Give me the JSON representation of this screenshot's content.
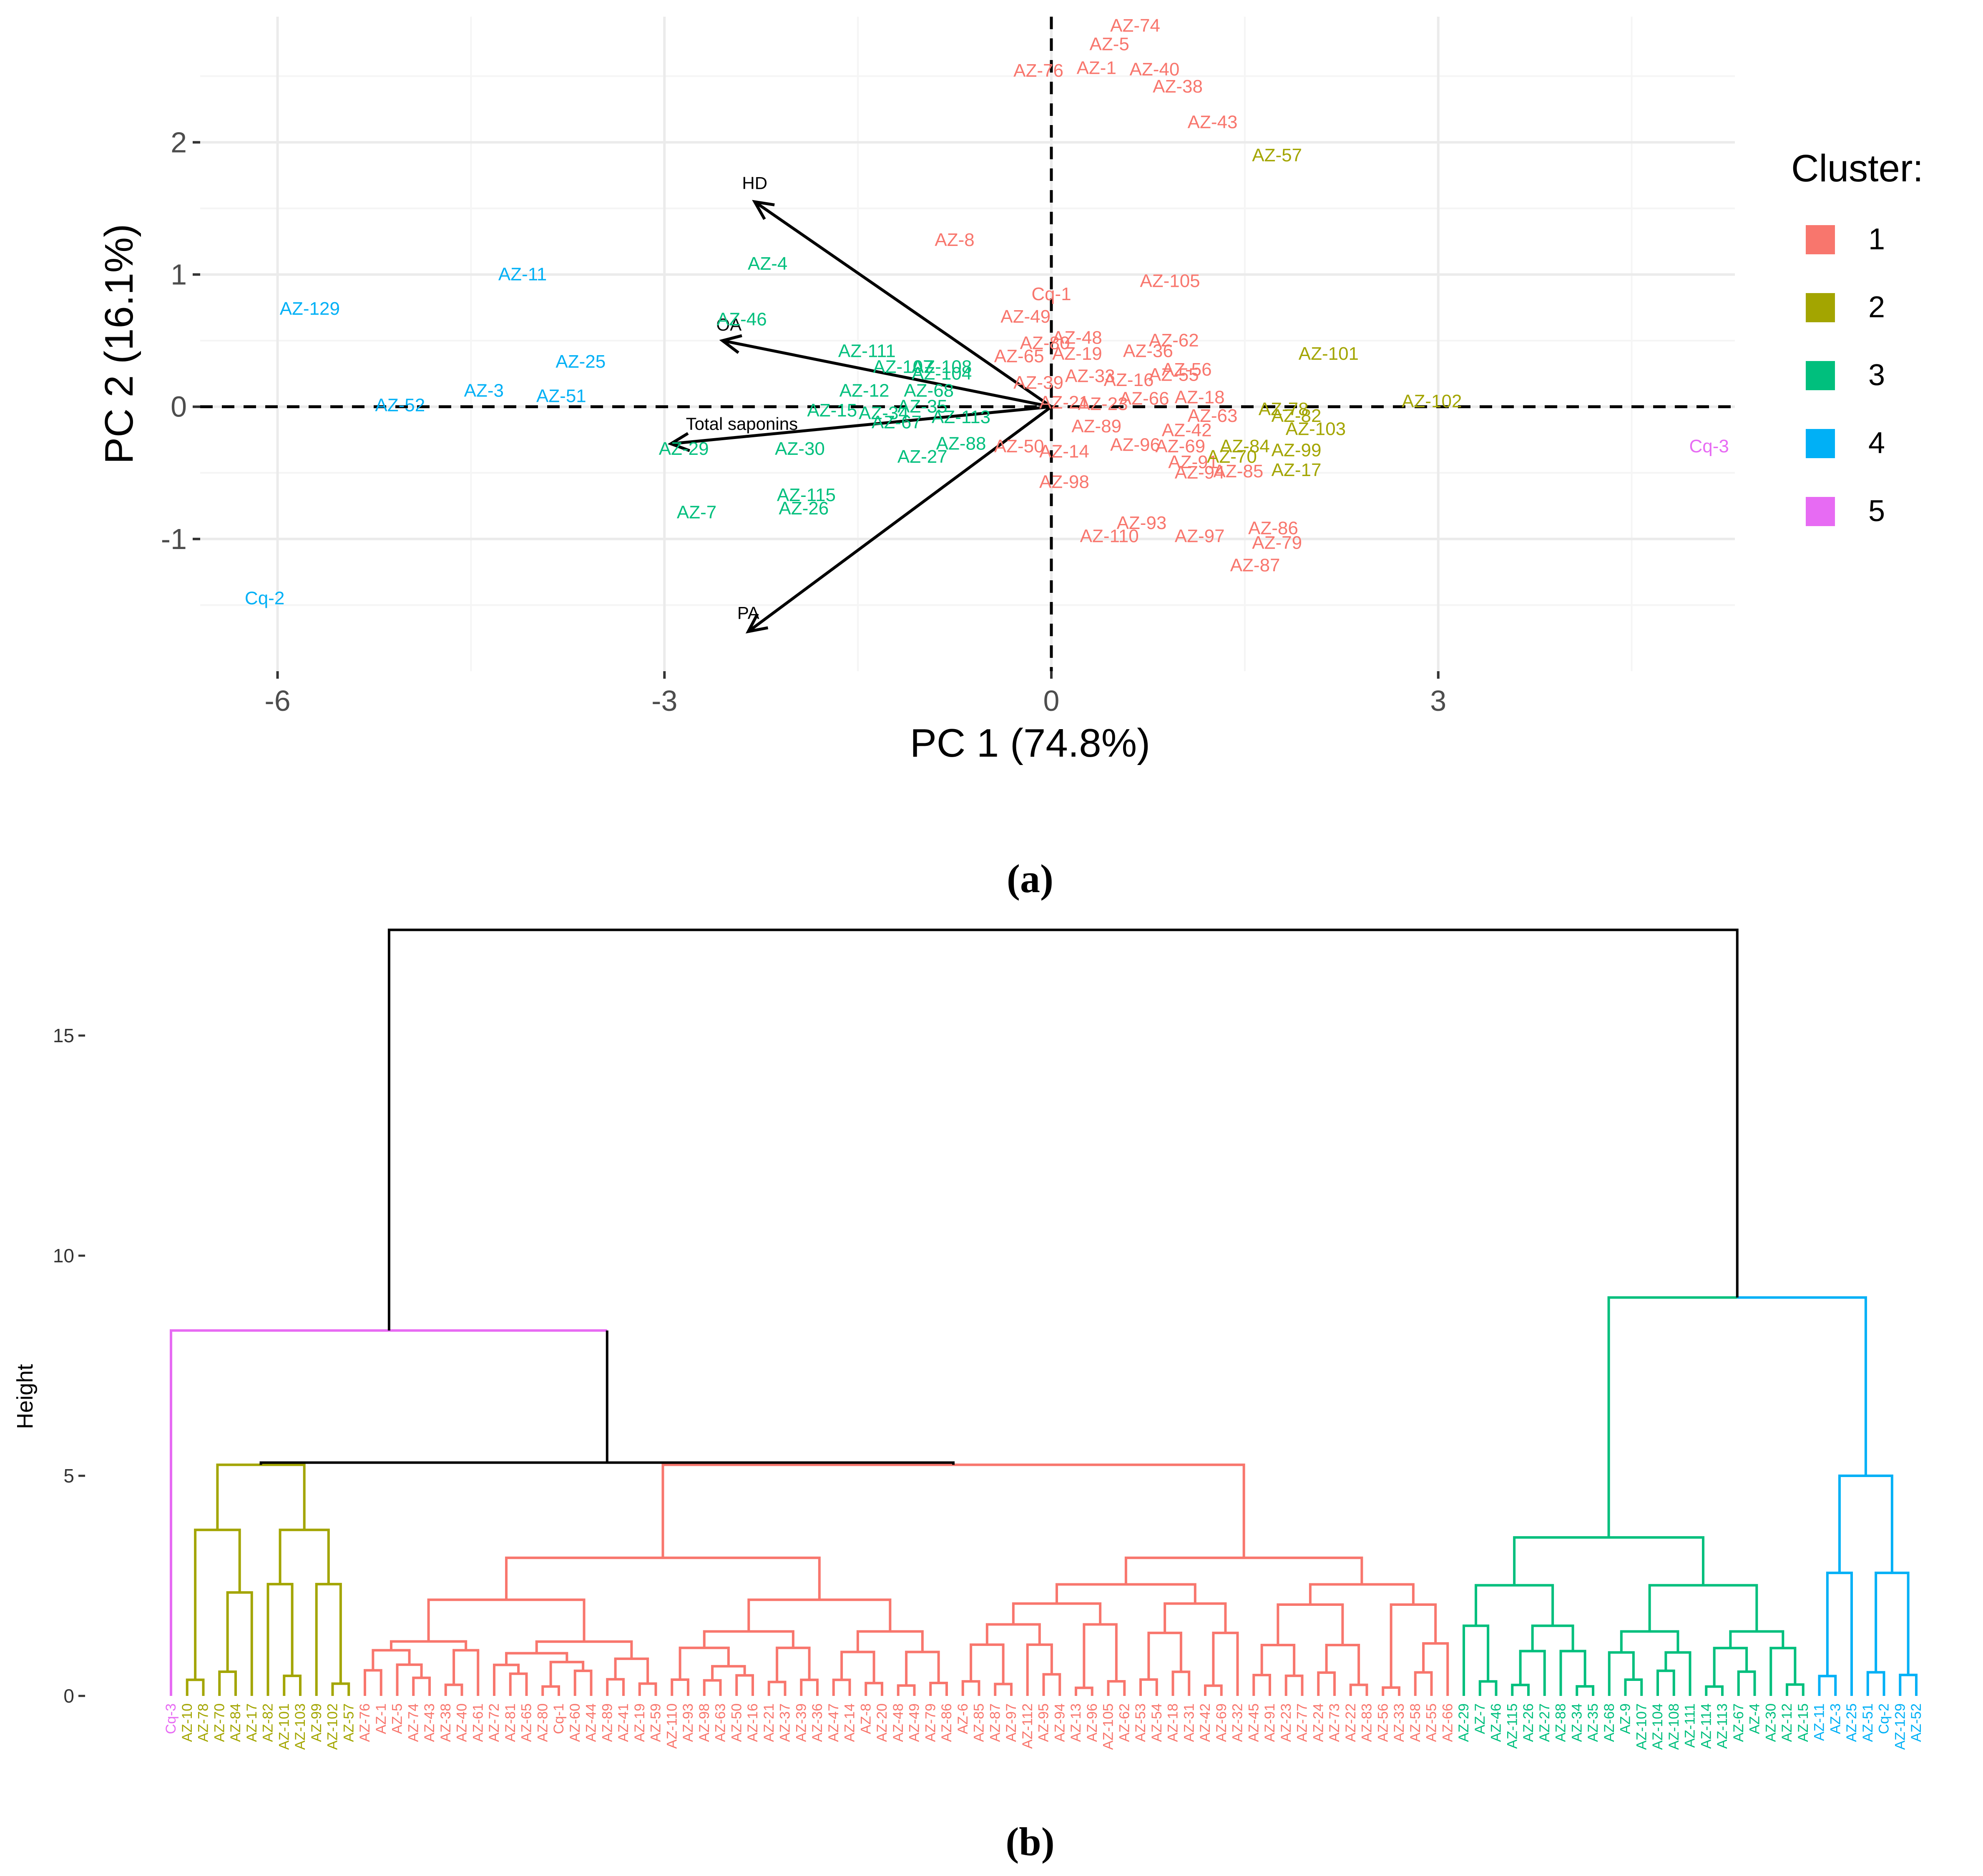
{
  "figure": {
    "panel_a_caption": "(a)",
    "panel_b_caption": "(b)"
  },
  "colors": {
    "cluster1": "#F8766D",
    "cluster2": "#A3A500",
    "cluster3": "#00BF7D",
    "cluster4": "#00B0F6",
    "cluster5": "#E76BF3",
    "grid_major": "#EBEBEB",
    "grid_minor": "#F5F5F5",
    "axis_text": "#4D4D4D"
  },
  "chart_data": [
    {
      "id": "pca_biplot",
      "type": "scatter",
      "xlabel": "PC 1 (74.8%)",
      "ylabel": "PC 2 (16.1%)",
      "xlim": [
        -6.6,
        5.3
      ],
      "ylim": [
        -2.0,
        2.95
      ],
      "x_ticks": [
        -6,
        -3,
        0,
        3
      ],
      "y_ticks": [
        2,
        1,
        0,
        -1
      ],
      "x_tick_labels": [
        "-6",
        "-3",
        "0",
        "3"
      ],
      "y_tick_labels": [
        "2",
        "1",
        "0",
        "-1"
      ],
      "legend": {
        "title": "Cluster:",
        "position": "right",
        "entries": [
          {
            "label": "1",
            "cluster": 1
          },
          {
            "label": "2",
            "cluster": 2
          },
          {
            "label": "3",
            "cluster": 3
          },
          {
            "label": "4",
            "cluster": 4
          },
          {
            "label": "5",
            "cluster": 5
          }
        ]
      },
      "loadings": [
        {
          "label": "HD",
          "x": -2.3,
          "y": 1.55,
          "lx": -2.3,
          "ly": 1.69
        },
        {
          "label": "OA",
          "x": -2.55,
          "y": 0.5,
          "lx": -2.5,
          "ly": 0.62
        },
        {
          "label": "Total saponins",
          "x": -2.95,
          "y": -0.28,
          "lx": -2.4,
          "ly": -0.13
        },
        {
          "label": "PA",
          "x": -2.35,
          "y": -1.7,
          "lx": -2.35,
          "ly": -1.56
        }
      ],
      "points": [
        {
          "label": "AZ-74",
          "x": 0.65,
          "y": 2.88,
          "cluster": 1
        },
        {
          "label": "AZ-5",
          "x": 0.45,
          "y": 2.74,
          "cluster": 1
        },
        {
          "label": "AZ-76",
          "x": -0.1,
          "y": 2.54,
          "cluster": 1
        },
        {
          "label": "AZ-1",
          "x": 0.35,
          "y": 2.56,
          "cluster": 1
        },
        {
          "label": "AZ-40",
          "x": 0.8,
          "y": 2.55,
          "cluster": 1
        },
        {
          "label": "AZ-38",
          "x": 0.98,
          "y": 2.42,
          "cluster": 1
        },
        {
          "label": "AZ-43",
          "x": 1.25,
          "y": 2.15,
          "cluster": 1
        },
        {
          "label": "AZ-8",
          "x": -0.75,
          "y": 1.26,
          "cluster": 1
        },
        {
          "label": "AZ-105",
          "x": 0.92,
          "y": 0.95,
          "cluster": 1
        },
        {
          "label": "Cq-1",
          "x": 0.0,
          "y": 0.85,
          "cluster": 1
        },
        {
          "label": "AZ-49",
          "x": -0.2,
          "y": 0.68,
          "cluster": 1
        },
        {
          "label": "AZ-48",
          "x": 0.2,
          "y": 0.52,
          "cluster": 1
        },
        {
          "label": "AZ-62",
          "x": 0.95,
          "y": 0.5,
          "cluster": 1
        },
        {
          "label": "AZ-80",
          "x": -0.05,
          "y": 0.48,
          "cluster": 1
        },
        {
          "label": "AZ-19",
          "x": 0.2,
          "y": 0.4,
          "cluster": 1
        },
        {
          "label": "AZ-36",
          "x": 0.75,
          "y": 0.42,
          "cluster": 1
        },
        {
          "label": "AZ-65",
          "x": -0.25,
          "y": 0.38,
          "cluster": 1
        },
        {
          "label": "AZ-56",
          "x": 1.05,
          "y": 0.28,
          "cluster": 1
        },
        {
          "label": "AZ-55",
          "x": 0.95,
          "y": 0.24,
          "cluster": 1
        },
        {
          "label": "AZ-16",
          "x": 0.6,
          "y": 0.2,
          "cluster": 1
        },
        {
          "label": "AZ-33",
          "x": 0.3,
          "y": 0.23,
          "cluster": 1
        },
        {
          "label": "AZ-39",
          "x": -0.1,
          "y": 0.18,
          "cluster": 1
        },
        {
          "label": "AZ-18",
          "x": 1.15,
          "y": 0.07,
          "cluster": 1
        },
        {
          "label": "AZ-66",
          "x": 0.72,
          "y": 0.06,
          "cluster": 1
        },
        {
          "label": "AZ-21",
          "x": 0.1,
          "y": 0.03,
          "cluster": 1
        },
        {
          "label": "AZ-23",
          "x": 0.4,
          "y": 0.02,
          "cluster": 1
        },
        {
          "label": "AZ-63",
          "x": 1.25,
          "y": -0.07,
          "cluster": 1
        },
        {
          "label": "AZ-89",
          "x": 0.35,
          "y": -0.15,
          "cluster": 1
        },
        {
          "label": "AZ-42",
          "x": 1.05,
          "y": -0.18,
          "cluster": 1
        },
        {
          "label": "AZ-50",
          "x": -0.25,
          "y": -0.3,
          "cluster": 1
        },
        {
          "label": "AZ-14",
          "x": 0.1,
          "y": -0.34,
          "cluster": 1
        },
        {
          "label": "AZ-96",
          "x": 0.65,
          "y": -0.29,
          "cluster": 1
        },
        {
          "label": "AZ-69",
          "x": 1.0,
          "y": -0.3,
          "cluster": 1
        },
        {
          "label": "AZ-91",
          "x": 1.1,
          "y": -0.42,
          "cluster": 1
        },
        {
          "label": "AZ-94",
          "x": 1.15,
          "y": -0.5,
          "cluster": 1
        },
        {
          "label": "AZ-85",
          "x": 1.45,
          "y": -0.49,
          "cluster": 1
        },
        {
          "label": "AZ-98",
          "x": 0.1,
          "y": -0.57,
          "cluster": 1
        },
        {
          "label": "AZ-93",
          "x": 0.7,
          "y": -0.88,
          "cluster": 1
        },
        {
          "label": "AZ-110",
          "x": 0.45,
          "y": -0.98,
          "cluster": 1
        },
        {
          "label": "AZ-97",
          "x": 1.15,
          "y": -0.98,
          "cluster": 1
        },
        {
          "label": "AZ-86",
          "x": 1.72,
          "y": -0.92,
          "cluster": 1
        },
        {
          "label": "AZ-79",
          "x": 1.75,
          "y": -1.03,
          "cluster": 1
        },
        {
          "label": "AZ-87",
          "x": 1.58,
          "y": -1.2,
          "cluster": 1
        },
        {
          "label": "AZ-57",
          "x": 1.75,
          "y": 1.9,
          "cluster": 2
        },
        {
          "label": "AZ-101",
          "x": 2.15,
          "y": 0.4,
          "cluster": 2
        },
        {
          "label": "AZ-102",
          "x": 2.95,
          "y": 0.04,
          "cluster": 2
        },
        {
          "label": "AZ-78",
          "x": 1.8,
          "y": -0.02,
          "cluster": 2
        },
        {
          "label": "AZ-82",
          "x": 1.9,
          "y": -0.07,
          "cluster": 2
        },
        {
          "label": "AZ-103",
          "x": 2.05,
          "y": -0.17,
          "cluster": 2
        },
        {
          "label": "AZ-84",
          "x": 1.5,
          "y": -0.3,
          "cluster": 2
        },
        {
          "label": "AZ-99",
          "x": 1.9,
          "y": -0.33,
          "cluster": 2
        },
        {
          "label": "AZ-70",
          "x": 1.4,
          "y": -0.38,
          "cluster": 2
        },
        {
          "label": "AZ-17",
          "x": 1.9,
          "y": -0.48,
          "cluster": 2
        },
        {
          "label": "AZ-4",
          "x": -2.2,
          "y": 1.08,
          "cluster": 3
        },
        {
          "label": "AZ-46",
          "x": -2.4,
          "y": 0.66,
          "cluster": 3
        },
        {
          "label": "AZ-111",
          "x": -1.43,
          "y": 0.42,
          "cluster": 3
        },
        {
          "label": "AZ-108",
          "x": -0.85,
          "y": 0.3,
          "cluster": 3
        },
        {
          "label": "AZ-104",
          "x": -0.85,
          "y": 0.25,
          "cluster": 3
        },
        {
          "label": "AZ-107",
          "x": -1.15,
          "y": 0.3,
          "cluster": 3
        },
        {
          "label": "AZ-12",
          "x": -1.45,
          "y": 0.12,
          "cluster": 3
        },
        {
          "label": "AZ-68",
          "x": -0.95,
          "y": 0.12,
          "cluster": 3
        },
        {
          "label": "AZ-15",
          "x": -1.7,
          "y": -0.03,
          "cluster": 3
        },
        {
          "label": "AZ-35",
          "x": -1.0,
          "y": 0.0,
          "cluster": 3
        },
        {
          "label": "AZ-34",
          "x": -1.3,
          "y": -0.05,
          "cluster": 3
        },
        {
          "label": "AZ-67",
          "x": -1.2,
          "y": -0.12,
          "cluster": 3
        },
        {
          "label": "AZ-113",
          "x": -0.7,
          "y": -0.08,
          "cluster": 3
        },
        {
          "label": "AZ-88",
          "x": -0.7,
          "y": -0.28,
          "cluster": 3
        },
        {
          "label": "AZ-27",
          "x": -1.0,
          "y": -0.38,
          "cluster": 3
        },
        {
          "label": "AZ-30",
          "x": -1.95,
          "y": -0.32,
          "cluster": 3
        },
        {
          "label": "AZ-29",
          "x": -2.85,
          "y": -0.32,
          "cluster": 3
        },
        {
          "label": "AZ-115",
          "x": -1.9,
          "y": -0.67,
          "cluster": 3
        },
        {
          "label": "AZ-26",
          "x": -1.92,
          "y": -0.77,
          "cluster": 3
        },
        {
          "label": "AZ-7",
          "x": -2.75,
          "y": -0.8,
          "cluster": 3
        },
        {
          "label": "AZ-11",
          "x": -4.1,
          "y": 1.0,
          "cluster": 4
        },
        {
          "label": "AZ-129",
          "x": -5.75,
          "y": 0.74,
          "cluster": 4
        },
        {
          "label": "AZ-25",
          "x": -3.65,
          "y": 0.34,
          "cluster": 4
        },
        {
          "label": "AZ-3",
          "x": -4.4,
          "y": 0.12,
          "cluster": 4
        },
        {
          "label": "AZ-51",
          "x": -3.8,
          "y": 0.08,
          "cluster": 4
        },
        {
          "label": "AZ-52",
          "x": -5.05,
          "y": 0.01,
          "cluster": 4
        },
        {
          "label": "Cq-2",
          "x": -6.1,
          "y": -1.45,
          "cluster": 4
        },
        {
          "label": "Cq-3",
          "x": 5.1,
          "y": -0.3,
          "cluster": 5
        }
      ]
    },
    {
      "id": "dendrogram",
      "type": "dendrogram",
      "ylabel": "Height",
      "ylim": [
        0,
        17.5
      ],
      "y_ticks": [
        0,
        5,
        10,
        15
      ],
      "y_tick_labels": [
        "0",
        "5",
        "10",
        "15"
      ],
      "leaves": [
        {
          "label": "Cq-3",
          "cluster": 5
        },
        {
          "label": "AZ-10",
          "cluster": 2
        },
        {
          "label": "AZ-78",
          "cluster": 2
        },
        {
          "label": "AZ-70",
          "cluster": 2
        },
        {
          "label": "AZ-84",
          "cluster": 2
        },
        {
          "label": "AZ-17",
          "cluster": 2
        },
        {
          "label": "AZ-82",
          "cluster": 2
        },
        {
          "label": "AZ-101",
          "cluster": 2
        },
        {
          "label": "AZ-103",
          "cluster": 2
        },
        {
          "label": "AZ-99",
          "cluster": 2
        },
        {
          "label": "AZ-102",
          "cluster": 2
        },
        {
          "label": "AZ-57",
          "cluster": 2
        },
        {
          "label": "AZ-76",
          "cluster": 1
        },
        {
          "label": "AZ-1",
          "cluster": 1
        },
        {
          "label": "AZ-5",
          "cluster": 1
        },
        {
          "label": "AZ-74",
          "cluster": 1
        },
        {
          "label": "AZ-43",
          "cluster": 1
        },
        {
          "label": "AZ-38",
          "cluster": 1
        },
        {
          "label": "AZ-40",
          "cluster": 1
        },
        {
          "label": "AZ-61",
          "cluster": 1
        },
        {
          "label": "AZ-72",
          "cluster": 1
        },
        {
          "label": "AZ-81",
          "cluster": 1
        },
        {
          "label": "AZ-65",
          "cluster": 1
        },
        {
          "label": "AZ-80",
          "cluster": 1
        },
        {
          "label": "Cq-1",
          "cluster": 1
        },
        {
          "label": "AZ-60",
          "cluster": 1
        },
        {
          "label": "AZ-44",
          "cluster": 1
        },
        {
          "label": "AZ-89",
          "cluster": 1
        },
        {
          "label": "AZ-41",
          "cluster": 1
        },
        {
          "label": "AZ-19",
          "cluster": 1
        },
        {
          "label": "AZ-59",
          "cluster": 1
        },
        {
          "label": "AZ-110",
          "cluster": 1
        },
        {
          "label": "AZ-93",
          "cluster": 1
        },
        {
          "label": "AZ-98",
          "cluster": 1
        },
        {
          "label": "AZ-63",
          "cluster": 1
        },
        {
          "label": "AZ-50",
          "cluster": 1
        },
        {
          "label": "AZ-16",
          "cluster": 1
        },
        {
          "label": "AZ-21",
          "cluster": 1
        },
        {
          "label": "AZ-37",
          "cluster": 1
        },
        {
          "label": "AZ-39",
          "cluster": 1
        },
        {
          "label": "AZ-36",
          "cluster": 1
        },
        {
          "label": "AZ-47",
          "cluster": 1
        },
        {
          "label": "AZ-14",
          "cluster": 1
        },
        {
          "label": "AZ-8",
          "cluster": 1
        },
        {
          "label": "AZ-20",
          "cluster": 1
        },
        {
          "label": "AZ-48",
          "cluster": 1
        },
        {
          "label": "AZ-49",
          "cluster": 1
        },
        {
          "label": "AZ-79",
          "cluster": 1
        },
        {
          "label": "AZ-86",
          "cluster": 1
        },
        {
          "label": "AZ-6",
          "cluster": 1
        },
        {
          "label": "AZ-85",
          "cluster": 1
        },
        {
          "label": "AZ-87",
          "cluster": 1
        },
        {
          "label": "AZ-97",
          "cluster": 1
        },
        {
          "label": "AZ-112",
          "cluster": 1
        },
        {
          "label": "AZ-95",
          "cluster": 1
        },
        {
          "label": "AZ-94",
          "cluster": 1
        },
        {
          "label": "AZ-13",
          "cluster": 1
        },
        {
          "label": "AZ-96",
          "cluster": 1
        },
        {
          "label": "AZ-105",
          "cluster": 1
        },
        {
          "label": "AZ-62",
          "cluster": 1
        },
        {
          "label": "AZ-53",
          "cluster": 1
        },
        {
          "label": "AZ-54",
          "cluster": 1
        },
        {
          "label": "AZ-18",
          "cluster": 1
        },
        {
          "label": "AZ-31",
          "cluster": 1
        },
        {
          "label": "AZ-42",
          "cluster": 1
        },
        {
          "label": "AZ-69",
          "cluster": 1
        },
        {
          "label": "AZ-32",
          "cluster": 1
        },
        {
          "label": "AZ-45",
          "cluster": 1
        },
        {
          "label": "AZ-91",
          "cluster": 1
        },
        {
          "label": "AZ-23",
          "cluster": 1
        },
        {
          "label": "AZ-77",
          "cluster": 1
        },
        {
          "label": "AZ-24",
          "cluster": 1
        },
        {
          "label": "AZ-73",
          "cluster": 1
        },
        {
          "label": "AZ-22",
          "cluster": 1
        },
        {
          "label": "AZ-83",
          "cluster": 1
        },
        {
          "label": "AZ-56",
          "cluster": 1
        },
        {
          "label": "AZ-33",
          "cluster": 1
        },
        {
          "label": "AZ-58",
          "cluster": 1
        },
        {
          "label": "AZ-55",
          "cluster": 1
        },
        {
          "label": "AZ-66",
          "cluster": 1
        },
        {
          "label": "AZ-29",
          "cluster": 3
        },
        {
          "label": "AZ-7",
          "cluster": 3
        },
        {
          "label": "AZ-46",
          "cluster": 3
        },
        {
          "label": "AZ-115",
          "cluster": 3
        },
        {
          "label": "AZ-26",
          "cluster": 3
        },
        {
          "label": "AZ-27",
          "cluster": 3
        },
        {
          "label": "AZ-88",
          "cluster": 3
        },
        {
          "label": "AZ-34",
          "cluster": 3
        },
        {
          "label": "AZ-35",
          "cluster": 3
        },
        {
          "label": "AZ-68",
          "cluster": 3
        },
        {
          "label": "AZ-9",
          "cluster": 3
        },
        {
          "label": "AZ-107",
          "cluster": 3
        },
        {
          "label": "AZ-104",
          "cluster": 3
        },
        {
          "label": "AZ-108",
          "cluster": 3
        },
        {
          "label": "AZ-111",
          "cluster": 3
        },
        {
          "label": "AZ-114",
          "cluster": 3
        },
        {
          "label": "AZ-113",
          "cluster": 3
        },
        {
          "label": "AZ-67",
          "cluster": 3
        },
        {
          "label": "AZ-4",
          "cluster": 3
        },
        {
          "label": "AZ-30",
          "cluster": 3
        },
        {
          "label": "AZ-12",
          "cluster": 3
        },
        {
          "label": "AZ-15",
          "cluster": 3
        },
        {
          "label": "AZ-11",
          "cluster": 4
        },
        {
          "label": "AZ-3",
          "cluster": 4
        },
        {
          "label": "AZ-25",
          "cluster": 4
        },
        {
          "label": "AZ-51",
          "cluster": 4
        },
        {
          "label": "Cq-2",
          "cluster": 4
        },
        {
          "label": "AZ-129",
          "cluster": 4
        },
        {
          "label": "AZ-52",
          "cluster": 4
        }
      ]
    }
  ]
}
